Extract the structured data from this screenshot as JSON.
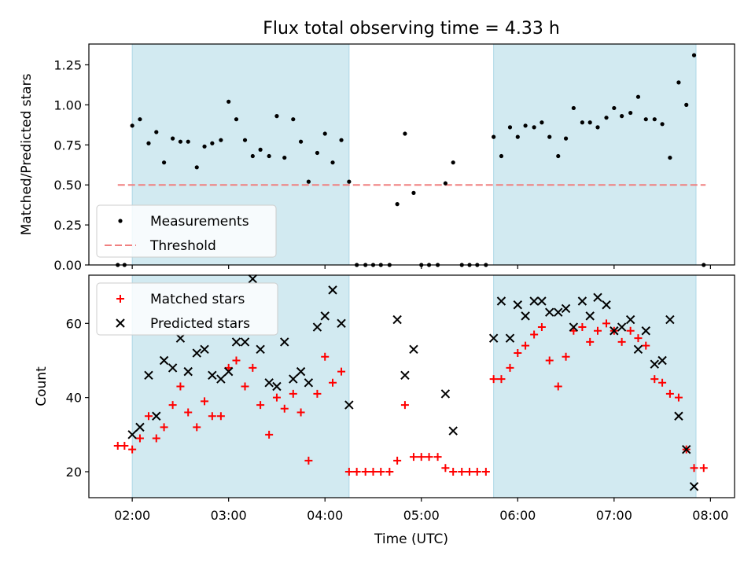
{
  "chart_data": {
    "type": "scatter",
    "title": "Flux total observing time = 4.33 h",
    "xlabel": "Time (UTC)",
    "x_ticks": [
      "02:00",
      "03:00",
      "04:00",
      "05:00",
      "06:00",
      "07:00",
      "08:00"
    ],
    "x_range_hours": [
      1.55,
      8.25
    ],
    "shaded_intervals_hours": [
      [
        2.0,
        4.25
      ],
      [
        5.75,
        7.85
      ]
    ],
    "colors": {
      "shade": "#add8e6",
      "measurements": "#000000",
      "threshold": "#f08080",
      "matched": "#ff0000",
      "predicted": "#000000"
    },
    "panels": [
      {
        "ylabel": "Matched/Predicted stars",
        "ylim": [
          0,
          1.38
        ],
        "y_ticks": [
          "0.00",
          "0.25",
          "0.50",
          "0.75",
          "1.00",
          "1.25"
        ],
        "legend": {
          "placement": "lower-left",
          "items": [
            "Measurements",
            "Threshold"
          ]
        },
        "threshold": {
          "name": "Threshold",
          "value": 0.5,
          "x_from_hours": 1.85,
          "x_to_hours": 7.95
        },
        "series": [
          {
            "name": "Measurements",
            "marker": "dot",
            "points": [
              [
                1.85,
                0.0
              ],
              [
                1.92,
                0.0
              ],
              [
                2.0,
                0.87
              ],
              [
                2.08,
                0.91
              ],
              [
                2.17,
                0.76
              ],
              [
                2.25,
                0.83
              ],
              [
                2.33,
                0.64
              ],
              [
                2.42,
                0.79
              ],
              [
                2.5,
                0.77
              ],
              [
                2.58,
                0.77
              ],
              [
                2.67,
                0.61
              ],
              [
                2.75,
                0.74
              ],
              [
                2.83,
                0.76
              ],
              [
                2.92,
                0.78
              ],
              [
                3.0,
                1.02
              ],
              [
                3.08,
                0.91
              ],
              [
                3.17,
                0.78
              ],
              [
                3.25,
                0.68
              ],
              [
                3.33,
                0.72
              ],
              [
                3.42,
                0.68
              ],
              [
                3.5,
                0.93
              ],
              [
                3.58,
                0.67
              ],
              [
                3.67,
                0.91
              ],
              [
                3.75,
                0.77
              ],
              [
                3.83,
                0.52
              ],
              [
                3.92,
                0.7
              ],
              [
                4.0,
                0.82
              ],
              [
                4.08,
                0.64
              ],
              [
                4.17,
                0.78
              ],
              [
                4.25,
                0.52
              ],
              [
                4.33,
                0.0
              ],
              [
                4.42,
                0.0
              ],
              [
                4.5,
                0.0
              ],
              [
                4.58,
                0.0
              ],
              [
                4.67,
                0.0
              ],
              [
                4.75,
                0.38
              ],
              [
                4.83,
                0.82
              ],
              [
                4.92,
                0.45
              ],
              [
                5.0,
                0.0
              ],
              [
                5.08,
                0.0
              ],
              [
                5.17,
                0.0
              ],
              [
                5.25,
                0.51
              ],
              [
                5.33,
                0.64
              ],
              [
                5.42,
                0.0
              ],
              [
                5.5,
                0.0
              ],
              [
                5.58,
                0.0
              ],
              [
                5.67,
                0.0
              ],
              [
                5.75,
                0.8
              ],
              [
                5.83,
                0.68
              ],
              [
                5.92,
                0.86
              ],
              [
                6.0,
                0.8
              ],
              [
                6.08,
                0.87
              ],
              [
                6.17,
                0.86
              ],
              [
                6.25,
                0.89
              ],
              [
                6.33,
                0.8
              ],
              [
                6.42,
                0.68
              ],
              [
                6.5,
                0.79
              ],
              [
                6.58,
                0.98
              ],
              [
                6.67,
                0.89
              ],
              [
                6.75,
                0.89
              ],
              [
                6.83,
                0.86
              ],
              [
                6.92,
                0.92
              ],
              [
                7.0,
                0.98
              ],
              [
                7.08,
                0.93
              ],
              [
                7.17,
                0.95
              ],
              [
                7.25,
                1.05
              ],
              [
                7.33,
                0.91
              ],
              [
                7.42,
                0.91
              ],
              [
                7.5,
                0.88
              ],
              [
                7.58,
                0.67
              ],
              [
                7.67,
                1.14
              ],
              [
                7.75,
                1.0
              ],
              [
                7.83,
                1.31
              ],
              [
                7.93,
                0.0
              ]
            ]
          }
        ]
      },
      {
        "ylabel": "Count",
        "ylim": [
          13,
          73
        ],
        "y_ticks": [
          "20",
          "40",
          "60"
        ],
        "legend": {
          "placement": "top-left",
          "items": [
            "Matched stars",
            "Predicted stars"
          ]
        },
        "series": [
          {
            "name": "Matched stars",
            "marker": "plus",
            "points": [
              [
                1.85,
                27
              ],
              [
                1.92,
                27
              ],
              [
                2.0,
                26
              ],
              [
                2.08,
                29
              ],
              [
                2.17,
                35
              ],
              [
                2.25,
                29
              ],
              [
                2.33,
                32
              ],
              [
                2.42,
                38
              ],
              [
                2.5,
                43
              ],
              [
                2.58,
                36
              ],
              [
                2.67,
                32
              ],
              [
                2.75,
                39
              ],
              [
                2.83,
                35
              ],
              [
                2.92,
                35
              ],
              [
                3.0,
                48
              ],
              [
                3.08,
                50
              ],
              [
                3.17,
                43
              ],
              [
                3.25,
                48
              ],
              [
                3.33,
                38
              ],
              [
                3.42,
                30
              ],
              [
                3.5,
                40
              ],
              [
                3.58,
                37
              ],
              [
                3.67,
                41
              ],
              [
                3.75,
                36
              ],
              [
                3.83,
                23
              ],
              [
                3.92,
                41
              ],
              [
                4.0,
                51
              ],
              [
                4.08,
                44
              ],
              [
                4.17,
                47
              ],
              [
                4.25,
                20
              ],
              [
                4.33,
                20
              ],
              [
                4.42,
                20
              ],
              [
                4.5,
                20
              ],
              [
                4.58,
                20
              ],
              [
                4.67,
                20
              ],
              [
                4.75,
                23
              ],
              [
                4.83,
                38
              ],
              [
                4.92,
                24
              ],
              [
                5.0,
                24
              ],
              [
                5.08,
                24
              ],
              [
                5.17,
                24
              ],
              [
                5.25,
                21
              ],
              [
                5.33,
                20
              ],
              [
                5.42,
                20
              ],
              [
                5.5,
                20
              ],
              [
                5.58,
                20
              ],
              [
                5.67,
                20
              ],
              [
                5.75,
                45
              ],
              [
                5.83,
                45
              ],
              [
                5.92,
                48
              ],
              [
                6.0,
                52
              ],
              [
                6.08,
                54
              ],
              [
                6.17,
                57
              ],
              [
                6.25,
                59
              ],
              [
                6.33,
                50
              ],
              [
                6.42,
                43
              ],
              [
                6.5,
                51
              ],
              [
                6.58,
                58
              ],
              [
                6.67,
                59
              ],
              [
                6.75,
                55
              ],
              [
                6.83,
                58
              ],
              [
                6.92,
                60
              ],
              [
                7.0,
                58
              ],
              [
                7.08,
                55
              ],
              [
                7.17,
                58
              ],
              [
                7.25,
                56
              ],
              [
                7.33,
                54
              ],
              [
                7.42,
                45
              ],
              [
                7.5,
                44
              ],
              [
                7.58,
                41
              ],
              [
                7.67,
                40
              ],
              [
                7.75,
                26
              ],
              [
                7.83,
                21
              ],
              [
                7.93,
                21
              ]
            ]
          },
          {
            "name": "Predicted stars",
            "marker": "x",
            "points": [
              [
                2.0,
                30
              ],
              [
                2.08,
                32
              ],
              [
                2.17,
                46
              ],
              [
                2.25,
                35
              ],
              [
                2.33,
                50
              ],
              [
                2.42,
                48
              ],
              [
                2.5,
                56
              ],
              [
                2.58,
                47
              ],
              [
                2.67,
                52
              ],
              [
                2.75,
                53
              ],
              [
                2.83,
                46
              ],
              [
                2.92,
                45
              ],
              [
                3.0,
                47
              ],
              [
                3.08,
                55
              ],
              [
                3.17,
                55
              ],
              [
                3.25,
                72
              ],
              [
                3.33,
                53
              ],
              [
                3.42,
                44
              ],
              [
                3.5,
                43
              ],
              [
                3.58,
                55
              ],
              [
                3.67,
                45
              ],
              [
                3.75,
                47
              ],
              [
                3.83,
                44
              ],
              [
                3.92,
                59
              ],
              [
                4.0,
                62
              ],
              [
                4.08,
                69
              ],
              [
                4.17,
                60
              ],
              [
                4.25,
                38
              ],
              [
                4.75,
                61
              ],
              [
                4.83,
                46
              ],
              [
                4.92,
                53
              ],
              [
                5.25,
                41
              ],
              [
                5.33,
                31
              ],
              [
                5.75,
                56
              ],
              [
                5.83,
                66
              ],
              [
                5.92,
                56
              ],
              [
                6.0,
                65
              ],
              [
                6.08,
                62
              ],
              [
                6.17,
                66
              ],
              [
                6.25,
                66
              ],
              [
                6.33,
                63
              ],
              [
                6.42,
                63
              ],
              [
                6.5,
                64
              ],
              [
                6.58,
                59
              ],
              [
                6.67,
                66
              ],
              [
                6.75,
                62
              ],
              [
                6.83,
                67
              ],
              [
                6.92,
                65
              ],
              [
                7.0,
                58
              ],
              [
                7.08,
                59
              ],
              [
                7.17,
                61
              ],
              [
                7.25,
                53
              ],
              [
                7.33,
                58
              ],
              [
                7.42,
                49
              ],
              [
                7.5,
                50
              ],
              [
                7.58,
                61
              ],
              [
                7.67,
                35
              ],
              [
                7.75,
                26
              ],
              [
                7.83,
                16
              ]
            ]
          }
        ]
      }
    ]
  }
}
